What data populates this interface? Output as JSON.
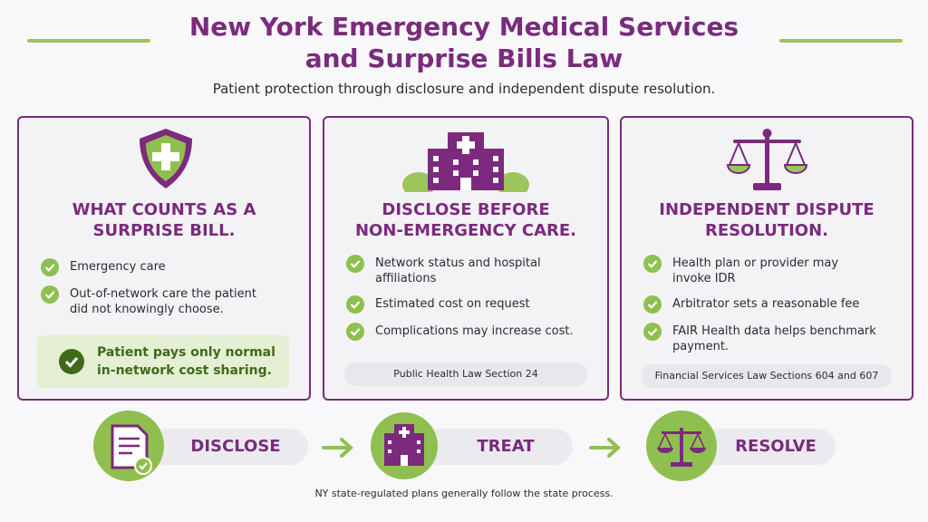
{
  "header": {
    "title_lines": [
      "New York Emergency Medical Services",
      "and Surprise Bills Law"
    ],
    "subtitle": "Patient protection through disclosure and independent dispute resolution."
  },
  "cards": [
    {
      "title_lines": [
        "WHAT COUNTS AS A",
        "SURPRISE BILL."
      ],
      "items": [
        "Emergency care",
        "Out-of-network care the patient did not knowingly choose."
      ],
      "callout": "Patient pays only normal in-network cost sharing."
    },
    {
      "title_lines": [
        "DISCLOSE BEFORE",
        "NON-EMERGENCY CARE."
      ],
      "items": [
        "Network status and hospital affiliations",
        "Estimated cost on request",
        "Complications may increase cost."
      ],
      "footer": "Public Health Law Section 24"
    },
    {
      "title_lines": [
        "INDEPENDENT DISPUTE",
        "RESOLUTION."
      ],
      "items": [
        "Health plan or provider may invoke IDR",
        "Arbitrator sets a reasonable fee",
        "FAIR Health data helps benchmark payment."
      ],
      "footer": "Financial Services Law Sections 604 and 607"
    }
  ],
  "flow": {
    "steps": [
      "DISCLOSE",
      "TREAT",
      "RESOLVE"
    ],
    "note": "NY state-regulated plans generally follow the state process."
  }
}
